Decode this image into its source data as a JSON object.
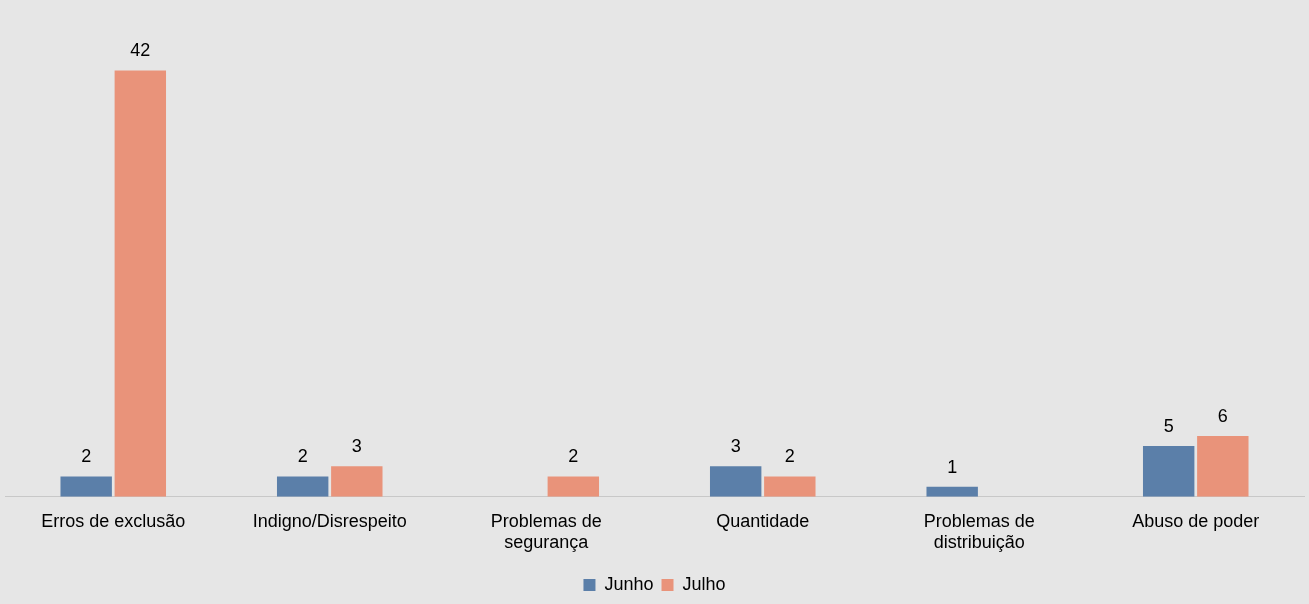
{
  "chart_data": {
    "type": "bar",
    "categories": [
      "Erros de exclusão",
      "Indigno/Disrespeito",
      "Problemas de segurança",
      "Quantidade",
      "Problemas de distribuição",
      "Abuso de poder"
    ],
    "series": [
      {
        "name": "Junho",
        "color": "#5b7fa9",
        "values": [
          2,
          2,
          null,
          3,
          1,
          5
        ]
      },
      {
        "name": "Julho",
        "color": "#e9937a",
        "values": [
          42,
          3,
          2,
          2,
          null,
          6
        ]
      }
    ],
    "data_labels": true,
    "legend": "bottom",
    "grid": false,
    "tick_labels": "x"
  }
}
